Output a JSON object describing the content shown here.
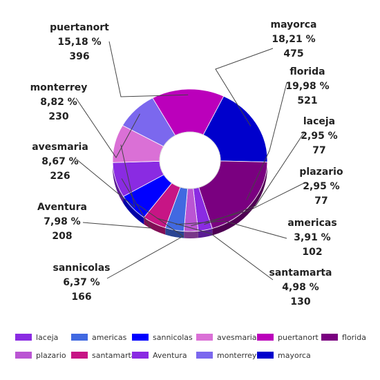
{
  "chart_data": {
    "type": "pie",
    "variant": "donut",
    "title": "",
    "slices": [
      {
        "name": "mayorca",
        "percent_label": "18,21 %",
        "value": 475,
        "color": "#0000CC"
      },
      {
        "name": "florida",
        "percent_label": "19,98 %",
        "value": 521,
        "color": "#7A0080"
      },
      {
        "name": "laceja",
        "percent_label": "2,95 %",
        "value": 77,
        "color": "#8A2BE2"
      },
      {
        "name": "plazario",
        "percent_label": "2,95 %",
        "value": 77,
        "color": "#BA55D3"
      },
      {
        "name": "americas",
        "percent_label": "3,91 %",
        "value": 102,
        "color": "#4169E1"
      },
      {
        "name": "santamarta",
        "percent_label": "4,98 %",
        "value": 130,
        "color": "#C71585"
      },
      {
        "name": "sannicolas",
        "percent_label": "6,37 %",
        "value": 166,
        "color": "#0000FF"
      },
      {
        "name": "Aventura",
        "percent_label": "7,98 %",
        "value": 208,
        "color": "#8A2BE2"
      },
      {
        "name": "avesmaria",
        "percent_label": "8,67 %",
        "value": 226,
        "color": "#DA70D6"
      },
      {
        "name": "monterrey",
        "percent_label": "8,82 %",
        "value": 230,
        "color": "#7B68EE"
      },
      {
        "name": "puertanort",
        "percent_label": "15,18 %",
        "value": 396,
        "color": "#BB00BB"
      }
    ],
    "legend": [
      {
        "name": "laceja",
        "color": "#8A2BE2"
      },
      {
        "name": "americas",
        "color": "#4169E1"
      },
      {
        "name": "sannicolas",
        "color": "#0000FF"
      },
      {
        "name": "avesmaria",
        "color": "#DA70D6"
      },
      {
        "name": "puertanort",
        "color": "#BB00BB"
      },
      {
        "name": "florida",
        "color": "#7A0080"
      },
      {
        "name": "plazario",
        "color": "#BA55D3"
      },
      {
        "name": "santamarta",
        "color": "#C71585"
      },
      {
        "name": "Aventura",
        "color": "#8A2BE2"
      },
      {
        "name": "monterrey",
        "color": "#7B68EE"
      },
      {
        "name": "mayorca",
        "color": "#0000CC"
      }
    ],
    "legend_position": "bottom"
  }
}
